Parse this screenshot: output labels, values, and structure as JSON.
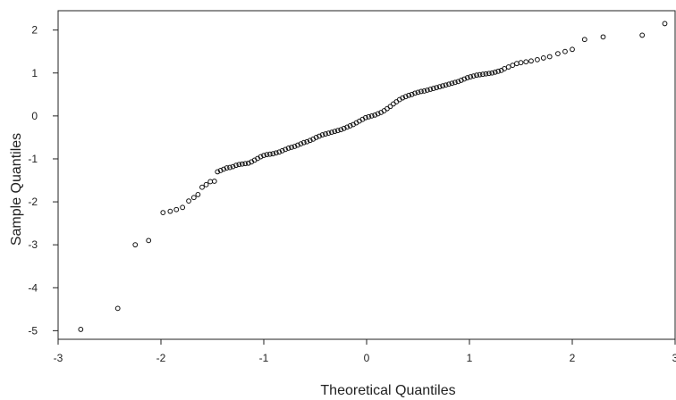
{
  "chart_data": {
    "type": "scatter",
    "title": "",
    "xlabel": "Theoretical Quantiles",
    "ylabel": "Sample Quantiles",
    "xlim": [
      -3,
      3
    ],
    "ylim": [
      -5.2,
      2.45
    ],
    "xticks": [
      -3,
      -2,
      -1,
      0,
      1,
      2,
      3
    ],
    "yticks": [
      -5,
      -4,
      -3,
      -2,
      -1,
      0,
      1,
      2
    ],
    "grid": false,
    "point_color": "#111111",
    "points": [
      [
        -2.78,
        -4.97
      ],
      [
        -2.42,
        -4.48
      ],
      [
        -2.25,
        -3.0
      ],
      [
        -2.12,
        -2.9
      ],
      [
        -1.98,
        -2.25
      ],
      [
        -1.91,
        -2.22
      ],
      [
        -1.85,
        -2.18
      ],
      [
        -1.79,
        -2.13
      ],
      [
        -1.73,
        -1.98
      ],
      [
        -1.68,
        -1.9
      ],
      [
        -1.64,
        -1.83
      ],
      [
        -1.6,
        -1.66
      ],
      [
        -1.56,
        -1.6
      ],
      [
        -1.52,
        -1.53
      ],
      [
        -1.48,
        -1.52
      ],
      [
        -1.45,
        -1.3
      ],
      [
        -1.42,
        -1.27
      ],
      [
        -1.39,
        -1.24
      ],
      [
        -1.36,
        -1.21
      ],
      [
        -1.33,
        -1.2
      ],
      [
        -1.3,
        -1.18
      ],
      [
        -1.27,
        -1.15
      ],
      [
        -1.24,
        -1.13
      ],
      [
        -1.21,
        -1.12
      ],
      [
        -1.18,
        -1.11
      ],
      [
        -1.15,
        -1.1
      ],
      [
        -1.12,
        -1.07
      ],
      [
        -1.09,
        -1.03
      ],
      [
        -1.06,
        -0.99
      ],
      [
        -1.03,
        -0.95
      ],
      [
        -1.0,
        -0.92
      ],
      [
        -0.97,
        -0.9
      ],
      [
        -0.94,
        -0.89
      ],
      [
        -0.91,
        -0.88
      ],
      [
        -0.88,
        -0.86
      ],
      [
        -0.85,
        -0.84
      ],
      [
        -0.82,
        -0.81
      ],
      [
        -0.79,
        -0.78
      ],
      [
        -0.76,
        -0.75
      ],
      [
        -0.73,
        -0.73
      ],
      [
        -0.7,
        -0.71
      ],
      [
        -0.67,
        -0.68
      ],
      [
        -0.64,
        -0.65
      ],
      [
        -0.61,
        -0.62
      ],
      [
        -0.58,
        -0.6
      ],
      [
        -0.55,
        -0.57
      ],
      [
        -0.52,
        -0.54
      ],
      [
        -0.49,
        -0.5
      ],
      [
        -0.46,
        -0.47
      ],
      [
        -0.43,
        -0.44
      ],
      [
        -0.4,
        -0.42
      ],
      [
        -0.37,
        -0.4
      ],
      [
        -0.34,
        -0.38
      ],
      [
        -0.31,
        -0.36
      ],
      [
        -0.28,
        -0.34
      ],
      [
        -0.25,
        -0.32
      ],
      [
        -0.22,
        -0.29
      ],
      [
        -0.19,
        -0.26
      ],
      [
        -0.16,
        -0.23
      ],
      [
        -0.13,
        -0.2
      ],
      [
        -0.1,
        -0.16
      ],
      [
        -0.07,
        -0.12
      ],
      [
        -0.04,
        -0.08
      ],
      [
        -0.01,
        -0.04
      ],
      [
        0.02,
        -0.02
      ],
      [
        0.05,
        0.0
      ],
      [
        0.08,
        0.02
      ],
      [
        0.11,
        0.05
      ],
      [
        0.14,
        0.08
      ],
      [
        0.17,
        0.12
      ],
      [
        0.2,
        0.17
      ],
      [
        0.23,
        0.22
      ],
      [
        0.26,
        0.28
      ],
      [
        0.29,
        0.33
      ],
      [
        0.32,
        0.38
      ],
      [
        0.35,
        0.42
      ],
      [
        0.38,
        0.45
      ],
      [
        0.41,
        0.48
      ],
      [
        0.44,
        0.5
      ],
      [
        0.47,
        0.53
      ],
      [
        0.5,
        0.55
      ],
      [
        0.53,
        0.57
      ],
      [
        0.56,
        0.58
      ],
      [
        0.59,
        0.6
      ],
      [
        0.62,
        0.62
      ],
      [
        0.65,
        0.64
      ],
      [
        0.68,
        0.66
      ],
      [
        0.71,
        0.68
      ],
      [
        0.74,
        0.7
      ],
      [
        0.77,
        0.72
      ],
      [
        0.8,
        0.74
      ],
      [
        0.83,
        0.76
      ],
      [
        0.86,
        0.78
      ],
      [
        0.89,
        0.8
      ],
      [
        0.92,
        0.83
      ],
      [
        0.95,
        0.86
      ],
      [
        0.98,
        0.89
      ],
      [
        1.01,
        0.91
      ],
      [
        1.04,
        0.93
      ],
      [
        1.07,
        0.95
      ],
      [
        1.1,
        0.96
      ],
      [
        1.13,
        0.97
      ],
      [
        1.16,
        0.98
      ],
      [
        1.19,
        0.99
      ],
      [
        1.22,
        1.0
      ],
      [
        1.25,
        1.02
      ],
      [
        1.28,
        1.04
      ],
      [
        1.31,
        1.06
      ],
      [
        1.34,
        1.1
      ],
      [
        1.38,
        1.14
      ],
      [
        1.42,
        1.18
      ],
      [
        1.46,
        1.22
      ],
      [
        1.5,
        1.24
      ],
      [
        1.55,
        1.26
      ],
      [
        1.6,
        1.28
      ],
      [
        1.66,
        1.31
      ],
      [
        1.72,
        1.35
      ],
      [
        1.78,
        1.38
      ],
      [
        1.86,
        1.45
      ],
      [
        1.93,
        1.5
      ],
      [
        2.0,
        1.55
      ],
      [
        2.12,
        1.78
      ],
      [
        2.3,
        1.84
      ],
      [
        2.68,
        1.88
      ],
      [
        2.9,
        2.15
      ]
    ]
  }
}
